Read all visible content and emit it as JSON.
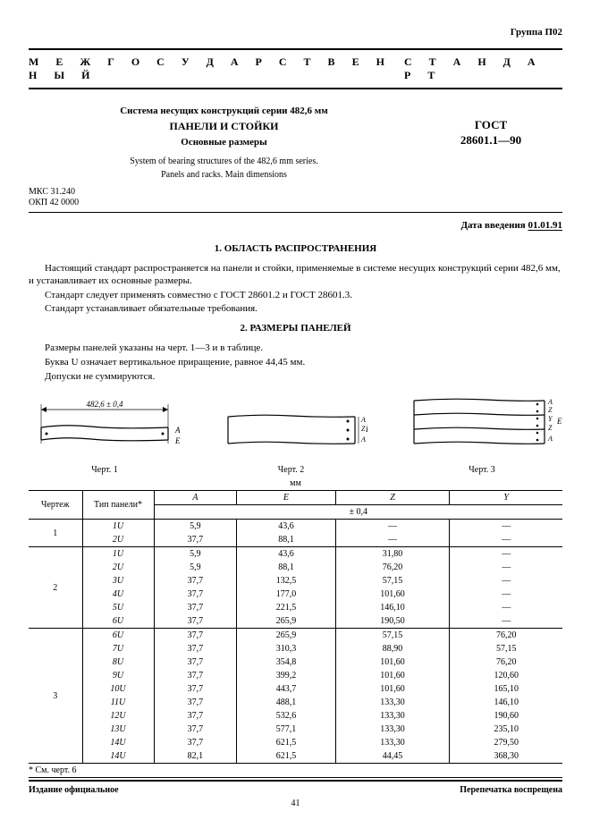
{
  "group_label": "Группа П02",
  "banner_left": "М Е Ж Г О С У Д А Р С Т В Е Н Н Ы Й",
  "banner_right": "С Т А Н Д А Р Т",
  "header": {
    "line1": "Система несущих конструкций серии 482,6 мм",
    "line2": "ПАНЕЛИ И СТОЙКИ",
    "line3": "Основные размеры",
    "eng1": "System of bearing structures of the 482,6 mm series.",
    "eng2": "Panels and racks. Main dimensions",
    "gost1": "ГОСТ",
    "gost2": "28601.1—90"
  },
  "classifiers": {
    "mks": "МКС 31.240",
    "okp": "ОКП 42 0000"
  },
  "date_label": "Дата введения ",
  "date_value": "01.01.91",
  "section1_title": "1. ОБЛАСТЬ РАСПРОСТРАНЕНИЯ",
  "section1_p1": "Настоящий стандарт распространяется на панели и стойки, применяемые в системе несущих конструкций серии 482,6 мм, и устанавливает их основные размеры.",
  "section1_p2": "Стандарт следует применять совместно с ГОСТ 28601.2 и ГОСТ 28601.3.",
  "section1_p3": "Стандарт устанавливает обязательные требования.",
  "section2_title": "2. РАЗМЕРЫ ПАНЕЛЕЙ",
  "section2_p1": "Размеры панелей указаны на черт. 1—3 и в таблице.",
  "section2_p2": "Буква U означает вертикальное приращение, равное 44,45 мм.",
  "section2_p3": "Допуски не суммируются.",
  "figures": {
    "f1_dim": "482,6 ± 0,4",
    "letters": {
      "A": "A",
      "E": "E",
      "Z": "Z",
      "Y": "Y"
    },
    "cap1": "Черт. 1",
    "cap2": "Черт. 2",
    "cap3": "Черт. 3"
  },
  "mm_label": "мм",
  "table": {
    "head": {
      "col_chert": "Чертеж",
      "col_type": "Тип панели*",
      "col_A": "A",
      "col_E": "E",
      "col_Z": "Z",
      "col_Y": "Y",
      "tolerance": "± 0,4"
    },
    "groups": [
      {
        "chert": "1",
        "rows": [
          {
            "t": "1U",
            "A": "5,9",
            "E": "43,6",
            "Z": "—",
            "Y": "—"
          },
          {
            "t": "2U",
            "A": "37,7",
            "E": "88,1",
            "Z": "—",
            "Y": "—"
          }
        ]
      },
      {
        "chert": "2",
        "rows": [
          {
            "t": "1U",
            "A": "5,9",
            "E": "43,6",
            "Z": "31,80",
            "Y": "—"
          },
          {
            "t": "2U",
            "A": "5,9",
            "E": "88,1",
            "Z": "76,20",
            "Y": "—"
          },
          {
            "t": "3U",
            "A": "37,7",
            "E": "132,5",
            "Z": "57,15",
            "Y": "—"
          },
          {
            "t": "4U",
            "A": "37,7",
            "E": "177,0",
            "Z": "101,60",
            "Y": "—"
          },
          {
            "t": "5U",
            "A": "37,7",
            "E": "221,5",
            "Z": "146,10",
            "Y": "—"
          },
          {
            "t": "6U",
            "A": "37,7",
            "E": "265,9",
            "Z": "190,50",
            "Y": "—"
          }
        ]
      },
      {
        "chert": "3",
        "rows": [
          {
            "t": "6U",
            "A": "37,7",
            "E": "265,9",
            "Z": "57,15",
            "Y": "76,20"
          },
          {
            "t": "7U",
            "A": "37,7",
            "E": "310,3",
            "Z": "88,90",
            "Y": "57,15"
          },
          {
            "t": "8U",
            "A": "37,7",
            "E": "354,8",
            "Z": "101,60",
            "Y": "76,20"
          },
          {
            "t": "9U",
            "A": "37,7",
            "E": "399,2",
            "Z": "101,60",
            "Y": "120,60"
          },
          {
            "t": "10U",
            "A": "37,7",
            "E": "443,7",
            "Z": "101,60",
            "Y": "165,10"
          },
          {
            "t": "11U",
            "A": "37,7",
            "E": "488,1",
            "Z": "133,30",
            "Y": "146,10"
          },
          {
            "t": "12U",
            "A": "37,7",
            "E": "532,6",
            "Z": "133,30",
            "Y": "190,60"
          },
          {
            "t": "13U",
            "A": "37,7",
            "E": "577,1",
            "Z": "133,30",
            "Y": "235,10"
          },
          {
            "t": "14U",
            "A": "37,7",
            "E": "621,5",
            "Z": "133,30",
            "Y": "279,50"
          },
          {
            "t": "14U",
            "A": "82,1",
            "E": "621,5",
            "Z": "44,45",
            "Y": "368,30"
          }
        ]
      }
    ],
    "footnote": "* См. черт. 6"
  },
  "bottom_left": "Издание официальное",
  "bottom_right": "Перепечатка воспрещена",
  "page_number": "41",
  "colors": {
    "text": "#000000",
    "bg": "#ffffff"
  }
}
